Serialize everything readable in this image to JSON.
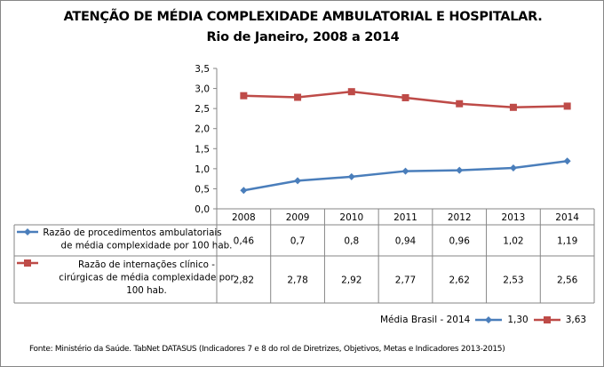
{
  "chart_data": {
    "type": "line",
    "title": "ATENÇÃO DE MÉDIA COMPLEXIDADE AMBULATORIAL E HOSPITALAR.",
    "subtitle": "Rio de Janeiro, 2008 a 2014",
    "categories": [
      "2008",
      "2009",
      "2010",
      "2011",
      "2012",
      "2013",
      "2014"
    ],
    "ylim": [
      0,
      3.5
    ],
    "yticks": [
      "0,0",
      "0,5",
      "1,0",
      "1,5",
      "2,0",
      "2,5",
      "3,0",
      "3,5"
    ],
    "grid": false,
    "data_table": true,
    "series": [
      {
        "name": "Razão de procedimentos ambulatoriais de média complexidade por 100 hab.",
        "name_lines": [
          "Razão de procedimentos ambulatoriais",
          "de média complexidade por 100 hab."
        ],
        "values": [
          0.46,
          0.7,
          0.8,
          0.94,
          0.96,
          1.02,
          1.19
        ],
        "labels": [
          "0,46",
          "0,7",
          "0,8",
          "0,94",
          "0,96",
          "1,02",
          "1,19"
        ],
        "color": "#4a7ebb",
        "marker": "diamond"
      },
      {
        "name": "Razão de internações clínico - cirúrgicas de média complexidade por 100 hab.",
        "name_lines": [
          "Razão de internações clínico -",
          "cirúrgicas de média complexidade por",
          "100 hab."
        ],
        "values": [
          2.82,
          2.78,
          2.92,
          2.77,
          2.62,
          2.53,
          2.56
        ],
        "labels": [
          "2,82",
          "2,78",
          "2,92",
          "2,77",
          "2,62",
          "2,53",
          "2,56"
        ],
        "color": "#be4b48",
        "marker": "square"
      }
    ]
  },
  "legend_brasil": {
    "label": "Média Brasil - 2014",
    "values": [
      "1,30",
      "3,63"
    ]
  },
  "footnote": "Fonte: Ministério da Saúde. TabNet DATASUS (Indicadores 7 e 8 do rol de Diretrizes, Objetivos, Metas e Indicadores 2013-2015)"
}
